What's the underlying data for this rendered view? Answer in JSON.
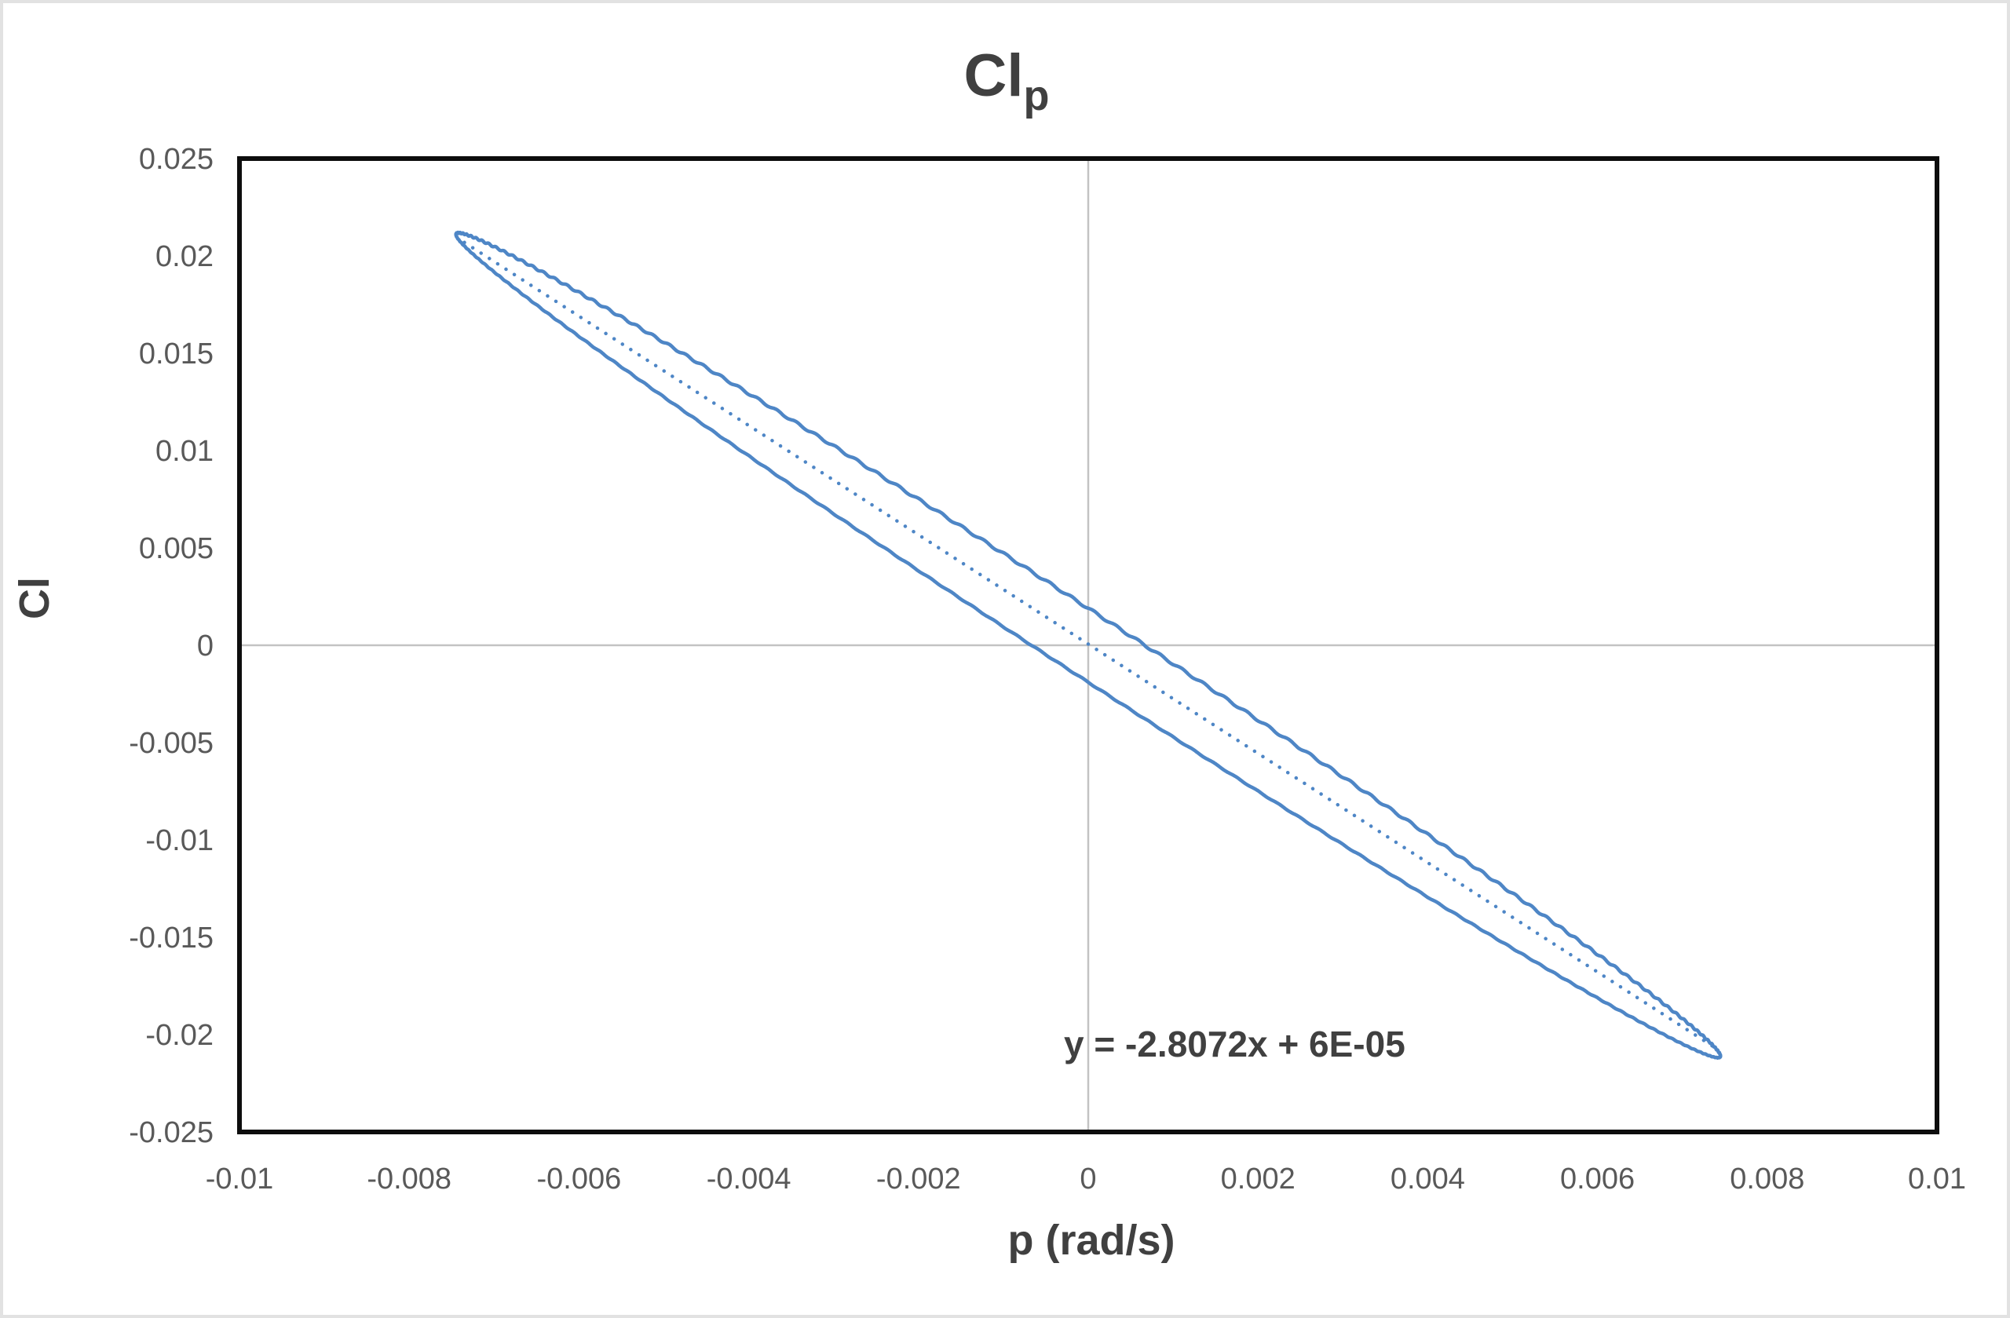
{
  "window": {
    "background": "#ffffff",
    "frame_border_color": "#e2e2e2"
  },
  "chart_data": {
    "type": "scatter",
    "title": {
      "main": "Cl",
      "subscript": "p"
    },
    "xlabel": "p (rad/s)",
    "ylabel": "Cl",
    "xlim": [
      -0.01,
      0.01
    ],
    "ylim": [
      -0.025,
      0.025
    ],
    "x_ticks": [
      "-0.01",
      "-0.008",
      "-0.006",
      "-0.004",
      "-0.002",
      "0",
      "0.002",
      "0.004",
      "0.006",
      "0.008",
      "0.01"
    ],
    "y_ticks": [
      "0.025",
      "0.02",
      "0.015",
      "0.01",
      "0.005",
      "0",
      "-0.005",
      "-0.01",
      "-0.015",
      "-0.02",
      "-0.025"
    ],
    "grid": "zero-axes-only",
    "legend": "none",
    "series": [
      {
        "name": "Cl vs p hysteresis loop",
        "type": "line-loop",
        "color": "#4e86c6",
        "model": {
          "shape": "narrow elliptical loop centred at origin, slightly wavy upper edge",
          "p_amplitude": 0.00745,
          "cl_tip": 0.0211,
          "cl_half_width_at_p0": 0.0019,
          "ripple_amplitude_upper": 6e-05,
          "ripple_amplitude_lower": 2.5e-05,
          "ripple_count": 180
        },
        "extremes": {
          "left_tip": [
            -0.00745,
            0.0211
          ],
          "right_tip": [
            0.00745,
            -0.0211
          ]
        }
      },
      {
        "name": "linear trendline",
        "type": "dotted-line",
        "color": "#4e86c6",
        "slope": -2.8072,
        "intercept": 6e-05,
        "x_range": [
          -0.00735,
          0.00735
        ],
        "label": "y = -2.8072x + 6E-05"
      }
    ],
    "colors": {
      "tick_text": "#595959",
      "title_text": "#404040",
      "plot_border": "#0d0d0d",
      "gridline": "#c3c3c3"
    }
  }
}
